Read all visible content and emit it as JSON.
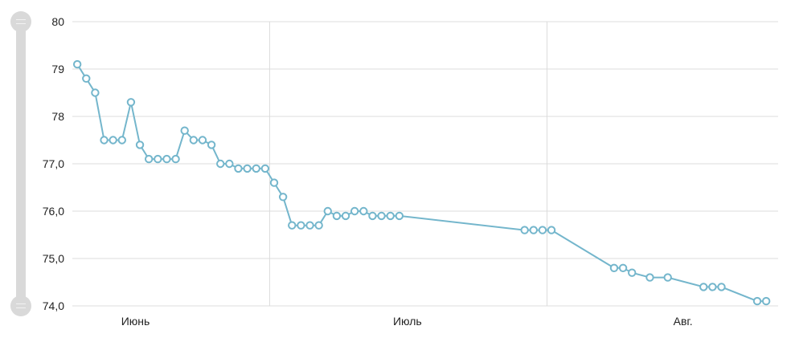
{
  "chart_data": {
    "type": "line",
    "title": "",
    "xlabel": "",
    "ylabel": "",
    "ylim": [
      74,
      80
    ],
    "y_ticks": [
      {
        "value": 80,
        "label": "80"
      },
      {
        "value": 79,
        "label": "79"
      },
      {
        "value": 78,
        "label": "78"
      },
      {
        "value": 77,
        "label": "77,0"
      },
      {
        "value": 76,
        "label": "76,0"
      },
      {
        "value": 75,
        "label": "75,0"
      },
      {
        "value": 74,
        "label": "74,0"
      }
    ],
    "x_ticks": [
      {
        "month": "06",
        "label": "Июнь"
      },
      {
        "month": "07",
        "label": "Июль"
      },
      {
        "month": "08",
        "label": "Авг."
      }
    ],
    "grid": true,
    "line_color": "#74b6cc",
    "grid_color": "#dcdcdc",
    "series": [
      {
        "x": [
          "06-09",
          "06-10",
          "06-11",
          "06-12",
          "06-13",
          "06-14",
          "06-15",
          "06-16",
          "06-17",
          "06-18",
          "06-19",
          "06-20",
          "06-21",
          "06-22",
          "06-23",
          "06-24",
          "06-25",
          "06-26",
          "06-27",
          "06-28",
          "06-29",
          "06-30",
          "07-01",
          "07-02",
          "07-03",
          "07-04",
          "07-05",
          "07-06",
          "07-07",
          "07-08",
          "07-09",
          "07-10",
          "07-11",
          "07-12",
          "07-13",
          "07-14",
          "07-15",
          "07-29",
          "07-30",
          "07-31",
          "08-01",
          "08-08",
          "08-09",
          "08-10",
          "08-12",
          "08-14",
          "08-18",
          "08-19",
          "08-20",
          "08-24",
          "08-25"
        ],
        "values": [
          79.1,
          78.8,
          78.5,
          77.5,
          77.5,
          77.5,
          78.3,
          77.4,
          77.1,
          77.1,
          77.1,
          77.1,
          77.7,
          77.5,
          77.5,
          77.4,
          77.0,
          77.0,
          76.9,
          76.9,
          76.9,
          76.9,
          76.6,
          76.3,
          75.7,
          75.7,
          75.7,
          75.7,
          76.0,
          75.9,
          75.9,
          76.0,
          76.0,
          75.9,
          75.9,
          75.9,
          75.9,
          75.6,
          75.6,
          75.6,
          75.6,
          74.8,
          74.8,
          74.7,
          74.6,
          74.6,
          74.4,
          74.4,
          74.4,
          74.1,
          74.1
        ]
      }
    ]
  },
  "range_slider": {
    "color": "#d9d9d9"
  }
}
